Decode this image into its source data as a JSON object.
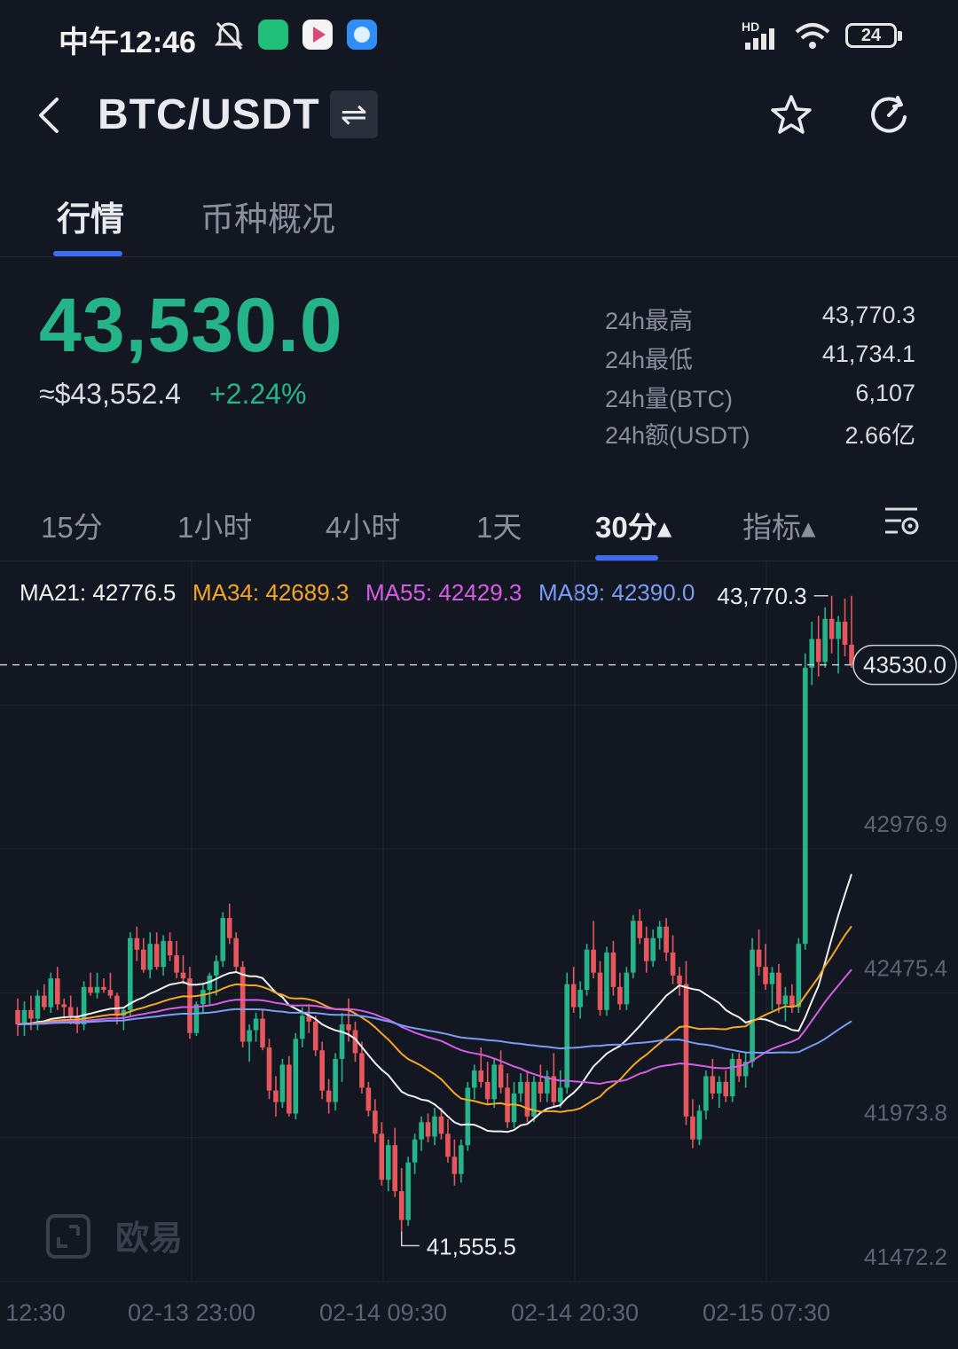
{
  "status_bar": {
    "time": "中午12:46",
    "network": "HD",
    "battery": "24"
  },
  "header": {
    "pair": "BTC/USDT",
    "swap_icon": "⇌"
  },
  "tabs": [
    {
      "label": "行情",
      "active": true
    },
    {
      "label": "币种概况",
      "active": false
    }
  ],
  "price": {
    "last": "43,530.0",
    "usd": "≈$43,552.4",
    "change": "+2.24%",
    "up_color": "#25b38a"
  },
  "stats": [
    {
      "label": "24h最高",
      "value": "43,770.3"
    },
    {
      "label": "24h最低",
      "value": "41,734.1"
    },
    {
      "label": "24h量(BTC)",
      "value": "6,107"
    },
    {
      "label": "24h额(USDT)",
      "value": "2.66亿"
    }
  ],
  "intervals": {
    "items": [
      "15分",
      "1小时",
      "4小时",
      "1天"
    ],
    "active": "30分▴",
    "indicator": "指标▴"
  },
  "ma_legend": [
    {
      "text": "MA21: 42776.5",
      "color": "#f0f0f0"
    },
    {
      "text": "MA34: 42689.3",
      "color": "#f5a623"
    },
    {
      "text": "MA55: 42429.3",
      "color": "#d65ce6"
    },
    {
      "text": "MA89: 42390.0",
      "color": "#7a9cf5"
    }
  ],
  "chart_data": {
    "type": "candlestick",
    "price_axis": [
      42976.9,
      42475.4,
      41973.8,
      41472.2
    ],
    "time_axis": [
      "12:30",
      "02-13 23:00",
      "02-14 09:30",
      "02-14 20:30",
      "02-15 07:30"
    ],
    "current_price": "43530.0",
    "high_marker": "43,770.3",
    "low_marker": "41,555.5",
    "ylim": [
      41472.2,
      43950
    ],
    "watermark": "欧易",
    "ohlc": [
      [
        42330,
        42370,
        42240,
        42280
      ],
      [
        42280,
        42360,
        42240,
        42330
      ],
      [
        42330,
        42380,
        42260,
        42300
      ],
      [
        42300,
        42400,
        42260,
        42380
      ],
      [
        42380,
        42420,
        42330,
        42340
      ],
      [
        42340,
        42460,
        42320,
        42440
      ],
      [
        42440,
        42480,
        42330,
        42350
      ],
      [
        42350,
        42370,
        42300,
        42340
      ],
      [
        42340,
        42380,
        42280,
        42310
      ],
      [
        42310,
        42340,
        42250,
        42280
      ],
      [
        42280,
        42430,
        42260,
        42410
      ],
      [
        42410,
        42460,
        42380,
        42390
      ],
      [
        42390,
        42460,
        42370,
        42410
      ],
      [
        42410,
        42440,
        42390,
        42400
      ],
      [
        42400,
        42460,
        42370,
        42380
      ],
      [
        42380,
        42390,
        42280,
        42310
      ],
      [
        42310,
        42340,
        42260,
        42330
      ],
      [
        42330,
        42600,
        42310,
        42580
      ],
      [
        42580,
        42620,
        42500,
        42540
      ],
      [
        42540,
        42580,
        42460,
        42470
      ],
      [
        42470,
        42600,
        42440,
        42560
      ],
      [
        42560,
        42600,
        42470,
        42480
      ],
      [
        42480,
        42590,
        42450,
        42570
      ],
      [
        42570,
        42600,
        42500,
        42520
      ],
      [
        42520,
        42570,
        42440,
        42460
      ],
      [
        42460,
        42520,
        42420,
        42440
      ],
      [
        42440,
        42480,
        42230,
        42250
      ],
      [
        42250,
        42360,
        42240,
        42350
      ],
      [
        42350,
        42420,
        42320,
        42400
      ],
      [
        42400,
        42460,
        42350,
        42450
      ],
      [
        42450,
        42520,
        42380,
        42500
      ],
      [
        42500,
        42670,
        42480,
        42650
      ],
      [
        42650,
        42700,
        42560,
        42580
      ],
      [
        42580,
        42600,
        42460,
        42480
      ],
      [
        42480,
        42500,
        42200,
        42220
      ],
      [
        42220,
        42280,
        42150,
        42260
      ],
      [
        42260,
        42320,
        42220,
        42300
      ],
      [
        42300,
        42330,
        42190,
        42200
      ],
      [
        42200,
        42230,
        42020,
        42050
      ],
      [
        42050,
        42100,
        41960,
        42010
      ],
      [
        42010,
        42160,
        41990,
        42140
      ],
      [
        42140,
        42170,
        41960,
        41970
      ],
      [
        41970,
        42250,
        41950,
        42230
      ],
      [
        42230,
        42340,
        42200,
        42310
      ],
      [
        42310,
        42350,
        42250,
        42290
      ],
      [
        42290,
        42310,
        42170,
        42190
      ],
      [
        42190,
        42220,
        42020,
        42050
      ],
      [
        42050,
        42090,
        41970,
        42010
      ],
      [
        42010,
        42180,
        41980,
        42160
      ],
      [
        42160,
        42320,
        42080,
        42280
      ],
      [
        42280,
        42370,
        42220,
        42260
      ],
      [
        42260,
        42290,
        42150,
        42180
      ],
      [
        42180,
        42220,
        42040,
        42060
      ],
      [
        42060,
        42080,
        41960,
        41980
      ],
      [
        41980,
        42020,
        41870,
        41900
      ],
      [
        41900,
        41940,
        41720,
        41740
      ],
      [
        41740,
        41880,
        41700,
        41860
      ],
      [
        41860,
        41920,
        41680,
        41700
      ],
      [
        41700,
        41780,
        41560,
        41600
      ],
      [
        41600,
        41820,
        41580,
        41800
      ],
      [
        41800,
        41900,
        41760,
        41880
      ],
      [
        41880,
        41960,
        41840,
        41940
      ],
      [
        41940,
        41970,
        41870,
        41890
      ],
      [
        41890,
        41990,
        41860,
        41960
      ],
      [
        41960,
        41990,
        41880,
        41900
      ],
      [
        41900,
        41950,
        41800,
        41820
      ],
      [
        41820,
        41880,
        41720,
        41760
      ],
      [
        41760,
        41880,
        41730,
        41860
      ],
      [
        41860,
        42080,
        41840,
        42060
      ],
      [
        42060,
        42140,
        42020,
        42120
      ],
      [
        42120,
        42200,
        42060,
        42080
      ],
      [
        42080,
        42150,
        42000,
        42020
      ],
      [
        42020,
        42160,
        41990,
        42140
      ],
      [
        42140,
        42190,
        42040,
        42060
      ],
      [
        42060,
        42110,
        41920,
        41940
      ],
      [
        41940,
        42080,
        41920,
        42040
      ],
      [
        42040,
        42110,
        42010,
        42080
      ],
      [
        42080,
        42120,
        41940,
        41960
      ],
      [
        41960,
        42100,
        41940,
        42080
      ],
      [
        42080,
        42140,
        42010,
        42040
      ],
      [
        42040,
        42120,
        42010,
        42100
      ],
      [
        42100,
        42180,
        41990,
        42010
      ],
      [
        42010,
        42120,
        41990,
        42060
      ],
      [
        42060,
        42460,
        42040,
        42420
      ],
      [
        42420,
        42480,
        42320,
        42340
      ],
      [
        42340,
        42430,
        42300,
        42400
      ],
      [
        42400,
        42560,
        42380,
        42540
      ],
      [
        42540,
        42640,
        42440,
        42460
      ],
      [
        42460,
        42500,
        42310,
        42330
      ],
      [
        42330,
        42550,
        42310,
        42530
      ],
      [
        42530,
        42570,
        42380,
        42410
      ],
      [
        42410,
        42460,
        42330,
        42350
      ],
      [
        42350,
        42480,
        42330,
        42460
      ],
      [
        42460,
        42660,
        42440,
        42640
      ],
      [
        42640,
        42680,
        42560,
        42580
      ],
      [
        42580,
        42620,
        42460,
        42500
      ],
      [
        42500,
        42610,
        42480,
        42580
      ],
      [
        42580,
        42640,
        42540,
        42620
      ],
      [
        42620,
        42650,
        42500,
        42530
      ],
      [
        42530,
        42590,
        42420,
        42450
      ],
      [
        42450,
        42480,
        42380,
        42420
      ],
      [
        42420,
        42500,
        41930,
        41960
      ],
      [
        41960,
        42020,
        41850,
        41880
      ],
      [
        41880,
        42000,
        41860,
        41980
      ],
      [
        41980,
        42120,
        41950,
        42100
      ],
      [
        42100,
        42160,
        42020,
        42040
      ],
      [
        42040,
        42100,
        41990,
        42080
      ],
      [
        42080,
        42120,
        42010,
        42030
      ],
      [
        42030,
        42180,
        42010,
        42160
      ],
      [
        42160,
        42180,
        42080,
        42100
      ],
      [
        42100,
        42180,
        42060,
        42150
      ],
      [
        42150,
        42580,
        42130,
        42540
      ],
      [
        42540,
        42610,
        42450,
        42480
      ],
      [
        42480,
        42560,
        42400,
        42420
      ],
      [
        42420,
        42480,
        42330,
        42460
      ],
      [
        42460,
        42490,
        42320,
        42350
      ],
      [
        42350,
        42410,
        42290,
        42380
      ],
      [
        42380,
        42420,
        42320,
        42340
      ],
      [
        42340,
        42580,
        42320,
        42560
      ],
      [
        42560,
        43570,
        42540,
        43520
      ],
      [
        43520,
        43680,
        43460,
        43620
      ],
      [
        43620,
        43700,
        43490,
        43540
      ],
      [
        43540,
        43730,
        43520,
        43690
      ],
      [
        43690,
        43770,
        43570,
        43620
      ],
      [
        43620,
        43700,
        43500,
        43680
      ],
      [
        43680,
        43760,
        43560,
        43600
      ],
      [
        43600,
        43770,
        43520,
        43530
      ]
    ]
  }
}
